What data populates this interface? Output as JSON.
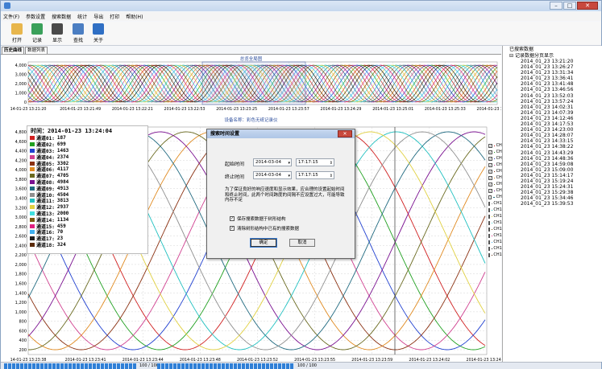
{
  "menu": [
    "文件(F)",
    "参数设置",
    "搜索数据",
    "统计",
    "导出",
    "打印",
    "帮助(H)"
  ],
  "toolbar": [
    {
      "label": "打开",
      "icon": "folder-open-icon",
      "color": "#e8b64c"
    },
    {
      "label": "记录",
      "icon": "record-icon",
      "color": "#3aa05a"
    },
    {
      "label": "显示",
      "icon": "tools-icon",
      "color": "#4a4a4a"
    },
    {
      "label": "查找",
      "icon": "search-icon",
      "color": "#4b7ec2"
    },
    {
      "label": "关于",
      "icon": "help-icon",
      "color": "#2f6fc4"
    }
  ],
  "tabs": [
    "历史曲线",
    "数据列表"
  ],
  "overview_title": "总览全局图",
  "device_title": "设备名称：彩色无纸记录仪",
  "top_x_ticks": [
    "14-01-23 13:21:20",
    "2014-01-23 13:21:49",
    "2014-01-23 13:22:21",
    "2014-01-23 13:22:53",
    "2014-01-23 13:23:25",
    "2014-01-23 13:23:57",
    "2014-01-23 13:24:29",
    "2014-01-23 13:25:01",
    "2014-01-23 13:25:33",
    "2014-01-23 13:26:05"
  ],
  "top_y_ticks": [
    "4,000",
    "3,000",
    "2,000",
    "1,000",
    "0"
  ],
  "main_y_ticks": [
    "4,800",
    "4,600",
    "4,400",
    "4,200",
    "4,000",
    "3,800",
    "3,600",
    "3,400",
    "3,200",
    "3,000",
    "2,800",
    "2,600",
    "2,400",
    "2,200",
    "2,000",
    "1,800",
    "1,600",
    "1,400",
    "1,200",
    "1,000",
    "800",
    "600",
    "400",
    "200"
  ],
  "main_x_ticks": [
    "14-01-23 13:23:38",
    "2014-01-23 13:23:41",
    "2014-01-23 13:23:44",
    "2014-01-23 13:23:48",
    "2014-01-23 13:23:52",
    "2014-01-23 13:23:55",
    "2014-01-23 13:23:59",
    "2014-01-23 13:24:02",
    "2014-01-23 13:24:06"
  ],
  "legend": {
    "time_label": "时间：2014-01-23 13:24:04",
    "rows": [
      {
        "name": "通道01:",
        "value": "187",
        "color": "#d02020"
      },
      {
        "name": "通道02:",
        "value": "699",
        "color": "#20a020"
      },
      {
        "name": "通道03:",
        "value": "1463",
        "color": "#2040d0"
      },
      {
        "name": "通道04:",
        "value": "2374",
        "color": "#d04090"
      },
      {
        "name": "通道05:",
        "value": "3302",
        "color": "#8a3010"
      },
      {
        "name": "通道06:",
        "value": "4117",
        "color": "#e08a20"
      },
      {
        "name": "通道07:",
        "value": "4705",
        "color": "#6a6a20"
      },
      {
        "name": "通道08:",
        "value": "4984",
        "color": "#7a1090"
      },
      {
        "name": "通道09:",
        "value": "4913",
        "color": "#206a80"
      },
      {
        "name": "通道10:",
        "value": "4504",
        "color": "#909090"
      },
      {
        "name": "通道11:",
        "value": "3813",
        "color": "#20c0c0"
      },
      {
        "name": "通道12:",
        "value": "2937",
        "color": "#e0d040"
      },
      {
        "name": "通道13:",
        "value": "2000",
        "color": "#40e0e0"
      },
      {
        "name": "通道14:",
        "value": "1134",
        "color": "#7a5a10"
      },
      {
        "name": "通道15:",
        "value": "459",
        "color": "#e02080"
      },
      {
        "name": "通道16:",
        "value": "70",
        "color": "#40b0f0"
      },
      {
        "name": "通道17:",
        "value": "23",
        "color": "#202020"
      },
      {
        "name": "通道18:",
        "value": "324",
        "color": "#5a2a0a"
      }
    ]
  },
  "channels": [
    {
      "label": "CH1",
      "checked": true,
      "color": "#d02020"
    },
    {
      "label": "CH2",
      "checked": true,
      "color": "#20a020"
    },
    {
      "label": "CH3",
      "checked": true,
      "color": "#2040d0"
    },
    {
      "label": "CH4",
      "checked": true,
      "color": "#d04090"
    },
    {
      "label": "CH5",
      "checked": true,
      "color": "#8a3010"
    },
    {
      "label": "CH6",
      "checked": true,
      "color": "#e08a20"
    },
    {
      "label": "CH7",
      "checked": true,
      "color": "#6a6a20"
    },
    {
      "label": "CH8",
      "checked": true,
      "color": "#7a1090"
    },
    {
      "label": "CH9",
      "checked": false,
      "color": "#206a80"
    },
    {
      "label": "CH10",
      "checked": false,
      "color": "#909090"
    },
    {
      "label": "CH11",
      "checked": false,
      "color": "#20c0c0"
    },
    {
      "label": "CH12",
      "checked": false,
      "color": "#e0d040"
    },
    {
      "label": "CH13",
      "checked": false,
      "color": "#40e0e0"
    },
    {
      "label": "CH14",
      "checked": false,
      "color": "#7a5a10"
    },
    {
      "label": "CH15",
      "checked": false,
      "color": "#e02080"
    },
    {
      "label": "CH16",
      "checked": false,
      "color": "#40b0f0"
    },
    {
      "label": "CH17",
      "checked": false,
      "color": "#202020"
    },
    {
      "label": "CH18",
      "checked": false,
      "color": "#5a2a0a"
    }
  ],
  "dialog": {
    "title": "搜索时间设置",
    "start_label": "起始时间",
    "end_label": "终止时间",
    "start_date": "2014-03-04",
    "start_time": "17:17:15",
    "end_date": "2014-03-04",
    "end_time": "17:17:15",
    "note": "为了保证良好的响应速度和显示效果，应合理的设置起始时间和终止时间，此两个时间跨度的间隔不应设置过大，可能导致内存不足",
    "chk1": "保存搜索数据于树形结构",
    "chk2": "清除树形结构中已有的搜索数据",
    "ok": "确定",
    "cancel": "取消"
  },
  "tree": {
    "root1": "已搜索数据",
    "root2": "记录数据分页显示",
    "items": [
      "2014_01_23 13:21:20",
      "2014_01_23 13:26:27",
      "2014_01_23 13:31:34",
      "2014_01_23 13:36:41",
      "2014_01_23 13:41:48",
      "2014_01_23 13:46:56",
      "2014_01_23 13:52:03",
      "2014_01_23 13:57:24",
      "2014_01_23 14:02:31",
      "2014_01_23 14:07:39",
      "2014_01_23 14:12:46",
      "2014_01_23 14:17:53",
      "2014_01_23 14:23:00",
      "2014_01_23 14:28:07",
      "2014_01_23 14:33:15",
      "2014_01_23 14:38:22",
      "2014_01_23 14:43:29",
      "2014_01_23 14:48:36",
      "2014_01_23 14:59:08",
      "2014_01_23 15:09:00",
      "2014_01_23 15:14:17",
      "2014_01_23 15:19:24",
      "2014_01_23 15:24:31",
      "2014_01_23 15:29:38",
      "2014_01_23 15:34:46",
      "2014_01_23 15:39:53"
    ]
  },
  "status": {
    "left": "100 / 100",
    "right": "100 / 100"
  }
}
